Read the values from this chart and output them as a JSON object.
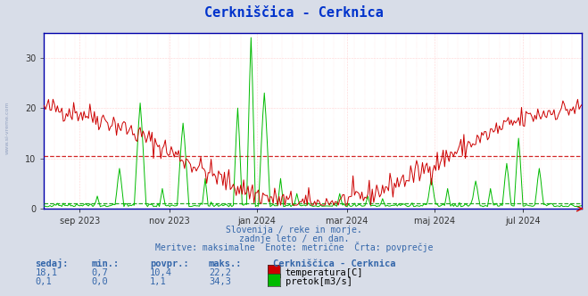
{
  "title": "Cerkniščica - Cerknica",
  "title_color": "#0033cc",
  "title_fontsize": 11,
  "bg_color": "#d8dde8",
  "plot_bg_color": "#ffffff",
  "ylim": [
    0,
    35
  ],
  "yticks": [
    0,
    10,
    20,
    30
  ],
  "temp_avg": 10.4,
  "flow_avg": 1.1,
  "temp_color": "#cc0000",
  "flow_color": "#00bb00",
  "grid_h_color": "#ffcccc",
  "grid_v_color": "#ffcccc",
  "avg_temp_color": "#cc0000",
  "avg_flow_color": "#009900",
  "spine_color": "#0000aa",
  "text_color": "#3366aa",
  "subtitle_lines": [
    "Slovenija / reke in morje.",
    "zadnje leto / en dan.",
    "Meritve: maksimalne  Enote: metrične  Črta: povprečje"
  ],
  "bottom_labels": {
    "headers": [
      "sedaj:",
      "min.:",
      "povpr.:",
      "maks.:"
    ],
    "row1": [
      "18,1",
      "0,7",
      "10,4",
      "22,2"
    ],
    "row2": [
      "0,1",
      "0,0",
      "1,1",
      "34,3"
    ],
    "station": "Cerkniščica - Cerknica",
    "series": [
      "temperatura[C]",
      "pretok[m3/s]"
    ],
    "series_colors": [
      "#cc0000",
      "#00bb00"
    ]
  },
  "watermark_text": "www.si-vreme.com",
  "xlabel_ticks": [
    "sep 2023",
    "nov 2023",
    "jan 2024",
    "mar 2024",
    "maj 2024",
    "jul 2024"
  ],
  "xlabel_fractions": [
    0.068,
    0.233,
    0.397,
    0.562,
    0.726,
    0.89
  ]
}
